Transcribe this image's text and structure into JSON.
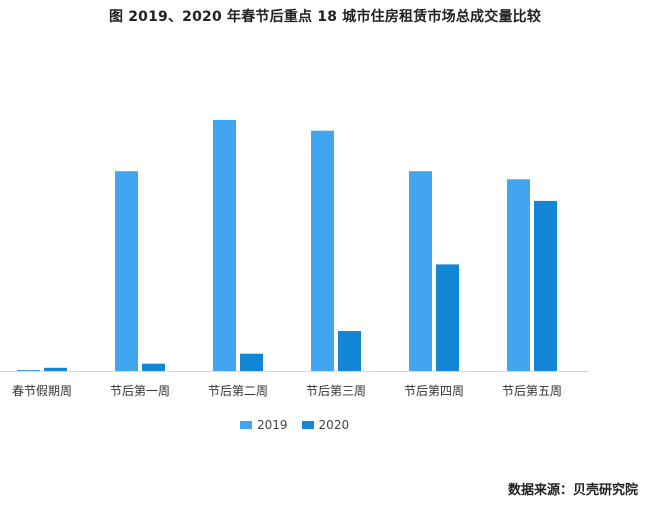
{
  "chart_data": {
    "type": "bar",
    "title": "图 2019、2020 年春节后重点 18 城市住房租赁市场总成交量比较",
    "categories": [
      "春节假期周",
      "节后第一周",
      "节后第二周",
      "节后第三周",
      "节后第四周",
      "节后第五周"
    ],
    "series": [
      {
        "name": "2019",
        "color": "#42a5f0",
        "values": [
          0.4,
          74,
          93,
          89,
          74,
          71
        ]
      },
      {
        "name": "2020",
        "color": "#1486d6",
        "values": [
          1.2,
          2.7,
          6.4,
          14.8,
          39.5,
          63
        ]
      }
    ],
    "ylim": [
      0,
      100
    ],
    "grid": false,
    "legend_position": "bottom-center"
  },
  "source": "数据来源：贝壳研究院"
}
